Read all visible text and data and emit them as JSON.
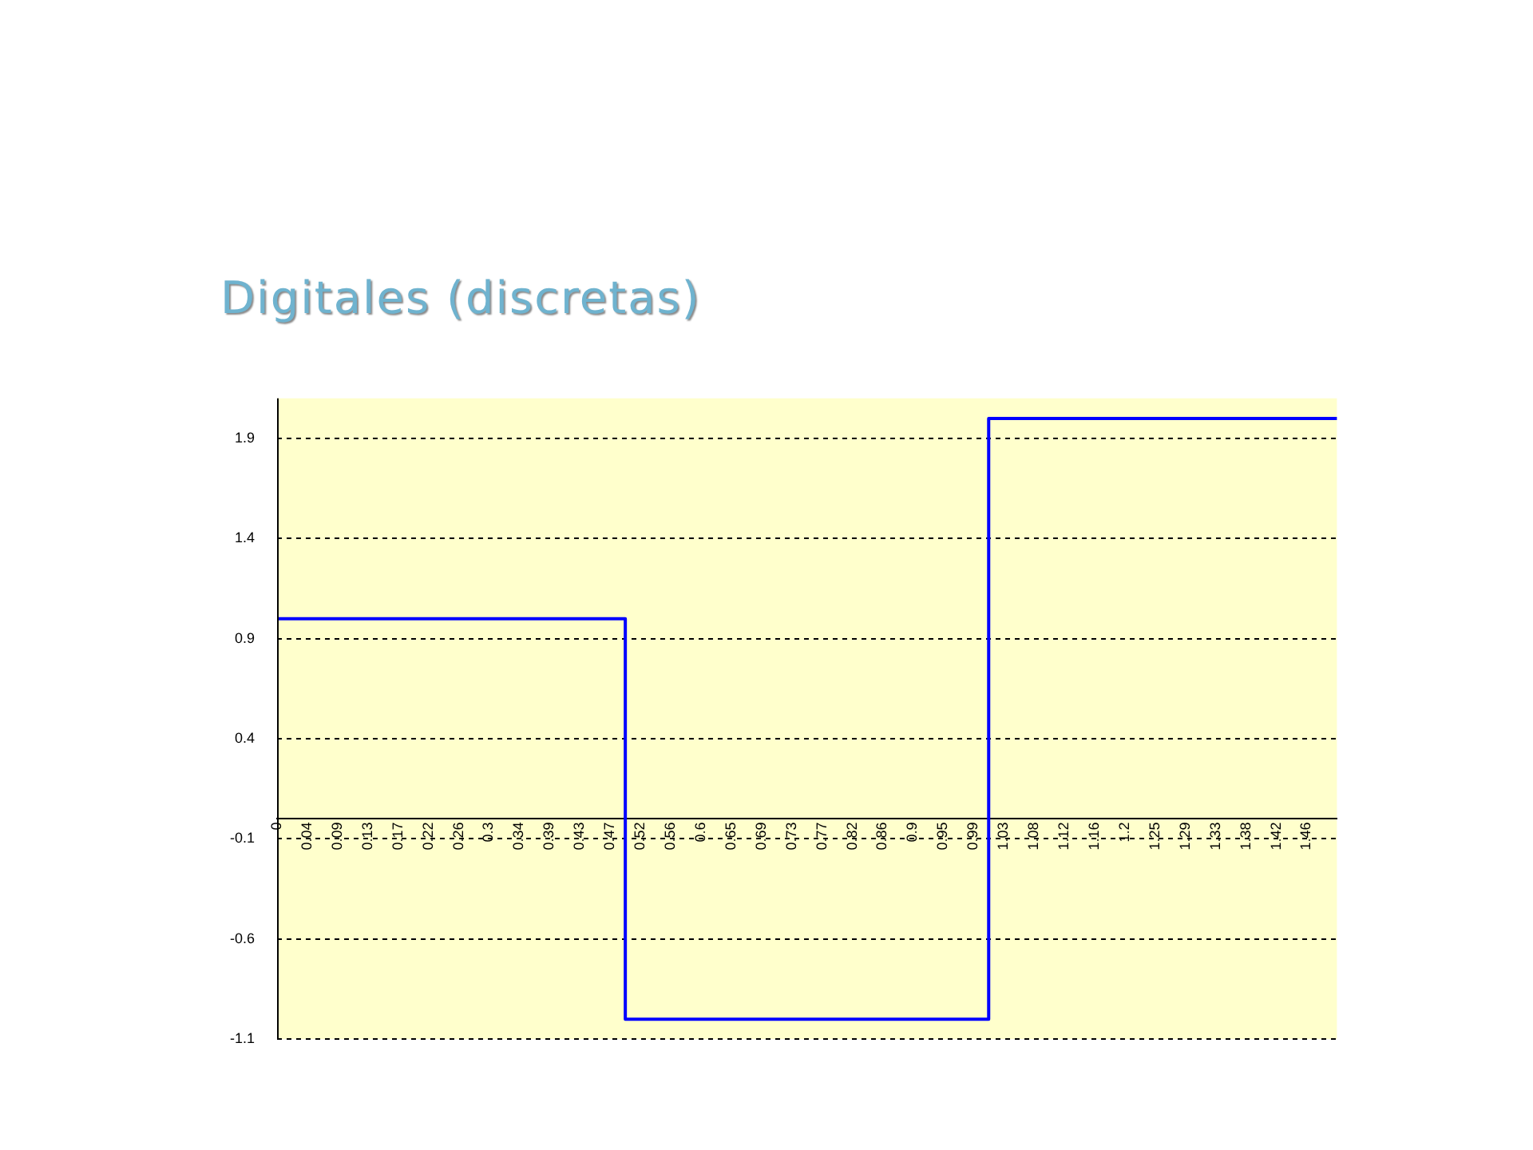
{
  "chart_data": {
    "type": "step",
    "title": "Digitales (discretas)",
    "categories": [
      "0",
      "0.04",
      "0.09",
      "0.13",
      "0.17",
      "0.22",
      "0.26",
      "0.3",
      "0.34",
      "0.39",
      "0.43",
      "0.47",
      "0.52",
      "0.56",
      "0.6",
      "0.65",
      "0.69",
      "0.73",
      "0.77",
      "0.82",
      "0.86",
      "0.9",
      "0.95",
      "0.99",
      "1.03",
      "1.08",
      "1.12",
      "1.16",
      "1.2",
      "1.25",
      "1.29",
      "1.33",
      "1.38",
      "1.42",
      "1.46",
      null
    ],
    "values": [
      1,
      1,
      1,
      1,
      1,
      1,
      1,
      1,
      1,
      1,
      1,
      1,
      -1,
      -1,
      -1,
      -1,
      -1,
      -1,
      -1,
      -1,
      -1,
      -1,
      -1,
      -1,
      2,
      2,
      2,
      2,
      2,
      2,
      2,
      2,
      2,
      2,
      2,
      2
    ],
    "color": "#0000ff",
    "ylim": [
      -1.1,
      2.1
    ],
    "yticks": [
      -1.1,
      -0.6,
      -0.1,
      0.4,
      0.9,
      1.4,
      1.9
    ],
    "grid": "y",
    "legend": false,
    "marker": "none"
  }
}
